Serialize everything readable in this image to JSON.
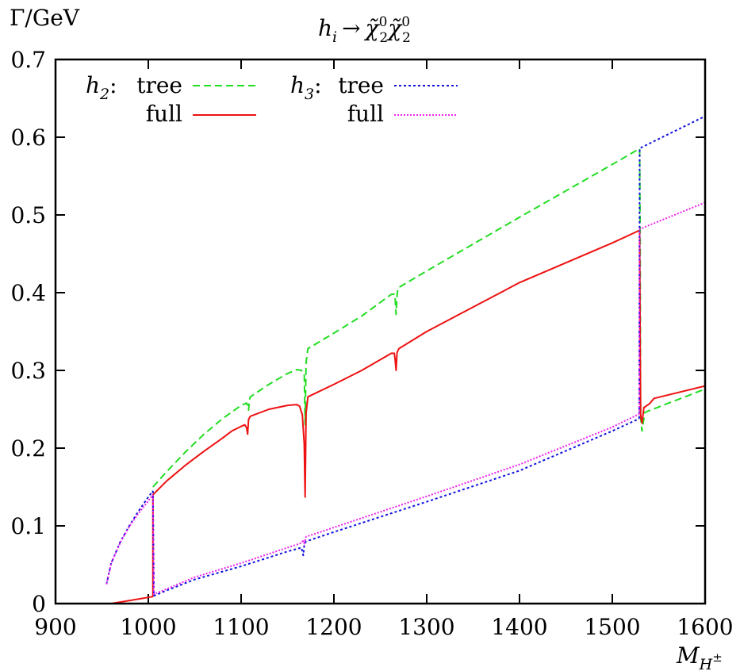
{
  "chart_data": {
    "type": "line",
    "title": "h_i → χ̃⁰₂χ̃⁰₂",
    "title_parts": {
      "h": "h",
      "i": "i",
      "arrow": "→",
      "chi": "χ̃",
      "sup": "0",
      "sub": "2"
    },
    "ylabel": "Γ/GeV",
    "xlabel": {
      "main": "M",
      "sub": "H",
      "sup": "±"
    },
    "xlim": [
      900,
      1600
    ],
    "ylim": [
      0,
      0.7
    ],
    "xticks": [
      900,
      1000,
      1100,
      1200,
      1300,
      1400,
      1500,
      1600
    ],
    "xtick_labels": [
      "900",
      "1000",
      "1100",
      "1200",
      "1300",
      "1400",
      "1500",
      "1600"
    ],
    "yticks": [
      0,
      0.1,
      0.2,
      0.3,
      0.4,
      0.5,
      0.6,
      0.7
    ],
    "ytick_labels": [
      "0",
      "0.1",
      "0.2",
      "0.3",
      "0.4",
      "0.5",
      "0.6",
      "0.7"
    ],
    "legend_position": "top-left",
    "legend_groups": [
      {
        "label": "h",
        "sub": "2",
        "sep": ":"
      },
      {
        "label": "h",
        "sub": "3",
        "sep": ":"
      }
    ],
    "series": [
      {
        "name": "tree",
        "group": "h2",
        "color": "#22dd22",
        "dash": "9,5",
        "segments": [
          [
            [
              1005,
              0.15
            ],
            [
              1020,
              0.17
            ],
            [
              1040,
              0.195
            ],
            [
              1060,
              0.218
            ],
            [
              1080,
              0.238
            ],
            [
              1100,
              0.255
            ],
            [
              1106,
              0.258
            ],
            [
              1107,
              0.255
            ],
            [
              1108,
              0.249
            ],
            [
              1109,
              0.262
            ],
            [
              1110,
              0.266
            ],
            [
              1130,
              0.282
            ],
            [
              1150,
              0.296
            ],
            [
              1160,
              0.301
            ],
            [
              1165,
              0.3
            ],
            [
              1168,
              0.295
            ],
            [
              1169,
              0.23
            ],
            [
              1170,
              0.31
            ],
            [
              1172,
              0.328
            ],
            [
              1200,
              0.348
            ],
            [
              1230,
              0.37
            ],
            [
              1262,
              0.398
            ],
            [
              1265,
              0.398
            ],
            [
              1266,
              0.392
            ],
            [
              1267,
              0.372
            ],
            [
              1268,
              0.395
            ],
            [
              1269,
              0.406
            ],
            [
              1300,
              0.428
            ],
            [
              1400,
              0.497
            ],
            [
              1500,
              0.565
            ],
            [
              1529,
              0.585
            ]
          ],
          [
            [
              1529.5,
              0.585
            ],
            [
              1530,
              0.48
            ],
            [
              1530.5,
              0.24
            ],
            [
              1532,
              0.222
            ],
            [
              1535,
              0.246
            ],
            [
              1600,
              0.276
            ]
          ]
        ]
      },
      {
        "name": "full",
        "group": "h2",
        "color": "#ee1111",
        "dash": "",
        "segments": [
          [
            [
              960,
              0.0
            ],
            [
              980,
              0.004
            ],
            [
              1005,
              0.009
            ]
          ],
          [
            [
              1005,
              0.009
            ],
            [
              1005,
              0.14
            ],
            [
              1020,
              0.158
            ],
            [
              1040,
              0.178
            ],
            [
              1060,
              0.196
            ],
            [
              1080,
              0.213
            ],
            [
              1090,
              0.222
            ],
            [
              1100,
              0.228
            ],
            [
              1104,
              0.23
            ],
            [
              1106,
              0.226
            ],
            [
              1107,
              0.218
            ],
            [
              1108,
              0.237
            ],
            [
              1110,
              0.241
            ],
            [
              1130,
              0.25
            ],
            [
              1150,
              0.255
            ],
            [
              1160,
              0.256
            ],
            [
              1163,
              0.254
            ],
            [
              1166,
              0.243
            ],
            [
              1168,
              0.205
            ],
            [
              1169,
              0.137
            ],
            [
              1170,
              0.245
            ],
            [
              1172,
              0.266
            ],
            [
              1200,
              0.282
            ],
            [
              1230,
              0.3
            ],
            [
              1262,
              0.322
            ],
            [
              1265,
              0.322
            ],
            [
              1266,
              0.314
            ],
            [
              1267,
              0.3
            ],
            [
              1268,
              0.323
            ],
            [
              1270,
              0.328
            ],
            [
              1300,
              0.35
            ],
            [
              1400,
              0.413
            ],
            [
              1500,
              0.464
            ],
            [
              1529,
              0.48
            ]
          ],
          [
            [
              1529.5,
              0.48
            ],
            [
              1530,
              0.34
            ],
            [
              1530.5,
              0.243
            ],
            [
              1531,
              0.238
            ],
            [
              1532,
              0.232
            ],
            [
              1534,
              0.252
            ],
            [
              1540,
              0.257
            ],
            [
              1545,
              0.264
            ],
            [
              1600,
              0.28
            ]
          ]
        ]
      },
      {
        "name": "tree",
        "group": "h3",
        "color": "#1111dd",
        "dash": "3,3",
        "segments": [
          [
            [
              955,
              0.025
            ],
            [
              960,
              0.052
            ],
            [
              970,
              0.08
            ],
            [
              980,
              0.101
            ],
            [
              990,
              0.12
            ],
            [
              1000,
              0.137
            ],
            [
              1005,
              0.145
            ]
          ],
          [
            [
              1005,
              0.145
            ],
            [
              1006,
              0.01
            ],
            [
              1020,
              0.017
            ],
            [
              1050,
              0.031
            ],
            [
              1100,
              0.048
            ],
            [
              1150,
              0.067
            ],
            [
              1165,
              0.072
            ],
            [
              1166,
              0.067
            ],
            [
              1167,
              0.062
            ],
            [
              1168,
              0.075
            ],
            [
              1170,
              0.08
            ],
            [
              1200,
              0.092
            ],
            [
              1300,
              0.131
            ],
            [
              1400,
              0.171
            ],
            [
              1500,
              0.222
            ],
            [
              1529,
              0.238
            ]
          ],
          [
            [
              1529,
              0.238
            ],
            [
              1529.5,
              0.585
            ],
            [
              1530,
              0.586
            ],
            [
              1600,
              0.627
            ]
          ]
        ]
      },
      {
        "name": "full",
        "group": "h3",
        "color": "#ee22ee",
        "dash": "2,2",
        "segments": [
          [
            [
              955,
              0.025
            ],
            [
              960,
              0.052
            ],
            [
              970,
              0.079
            ],
            [
              980,
              0.1
            ],
            [
              990,
              0.117
            ],
            [
              1000,
              0.132
            ],
            [
              1005,
              0.14
            ]
          ],
          [
            [
              1005,
              0.14
            ],
            [
              1006,
              0.012
            ],
            [
              1020,
              0.019
            ],
            [
              1050,
              0.034
            ],
            [
              1100,
              0.052
            ],
            [
              1150,
              0.072
            ],
            [
              1165,
              0.078
            ],
            [
              1167,
              0.082
            ],
            [
              1168,
              0.077
            ],
            [
              1170,
              0.086
            ],
            [
              1200,
              0.098
            ],
            [
              1300,
              0.138
            ],
            [
              1400,
              0.179
            ],
            [
              1500,
              0.227
            ],
            [
              1529,
              0.244
            ]
          ],
          [
            [
              1529,
              0.244
            ],
            [
              1529.5,
              0.481
            ],
            [
              1530,
              0.482
            ],
            [
              1600,
              0.516
            ]
          ]
        ]
      }
    ]
  }
}
